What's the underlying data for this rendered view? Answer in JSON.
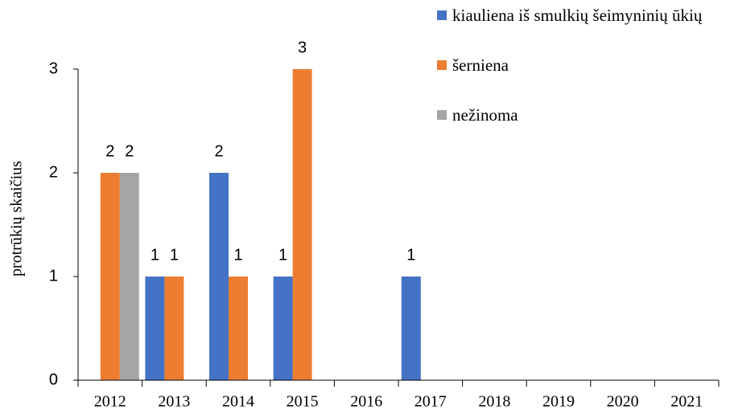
{
  "chart_data": {
    "type": "bar",
    "y_label": "protrūkių skaičius",
    "categories": [
      "2012",
      "2013",
      "2014",
      "2015",
      "2016",
      "2017",
      "2018",
      "2019",
      "2020",
      "2021"
    ],
    "series": [
      {
        "name": "kiauliena iš smulkių šeimyninių ūkių",
        "color": "#4472c4",
        "values": [
          null,
          1,
          2,
          1,
          null,
          1,
          null,
          null,
          null,
          null
        ]
      },
      {
        "name": "šerniena",
        "color": "#ed7d31",
        "values": [
          2,
          1,
          1,
          3,
          null,
          null,
          null,
          null,
          null,
          null
        ]
      },
      {
        "name": "nežinoma",
        "color": "#a5a5a5",
        "values": [
          2,
          null,
          null,
          null,
          null,
          null,
          null,
          null,
          null,
          null
        ]
      }
    ],
    "ylim": [
      0,
      3
    ],
    "yticks": [
      0,
      1,
      2,
      3
    ],
    "grid": false
  }
}
